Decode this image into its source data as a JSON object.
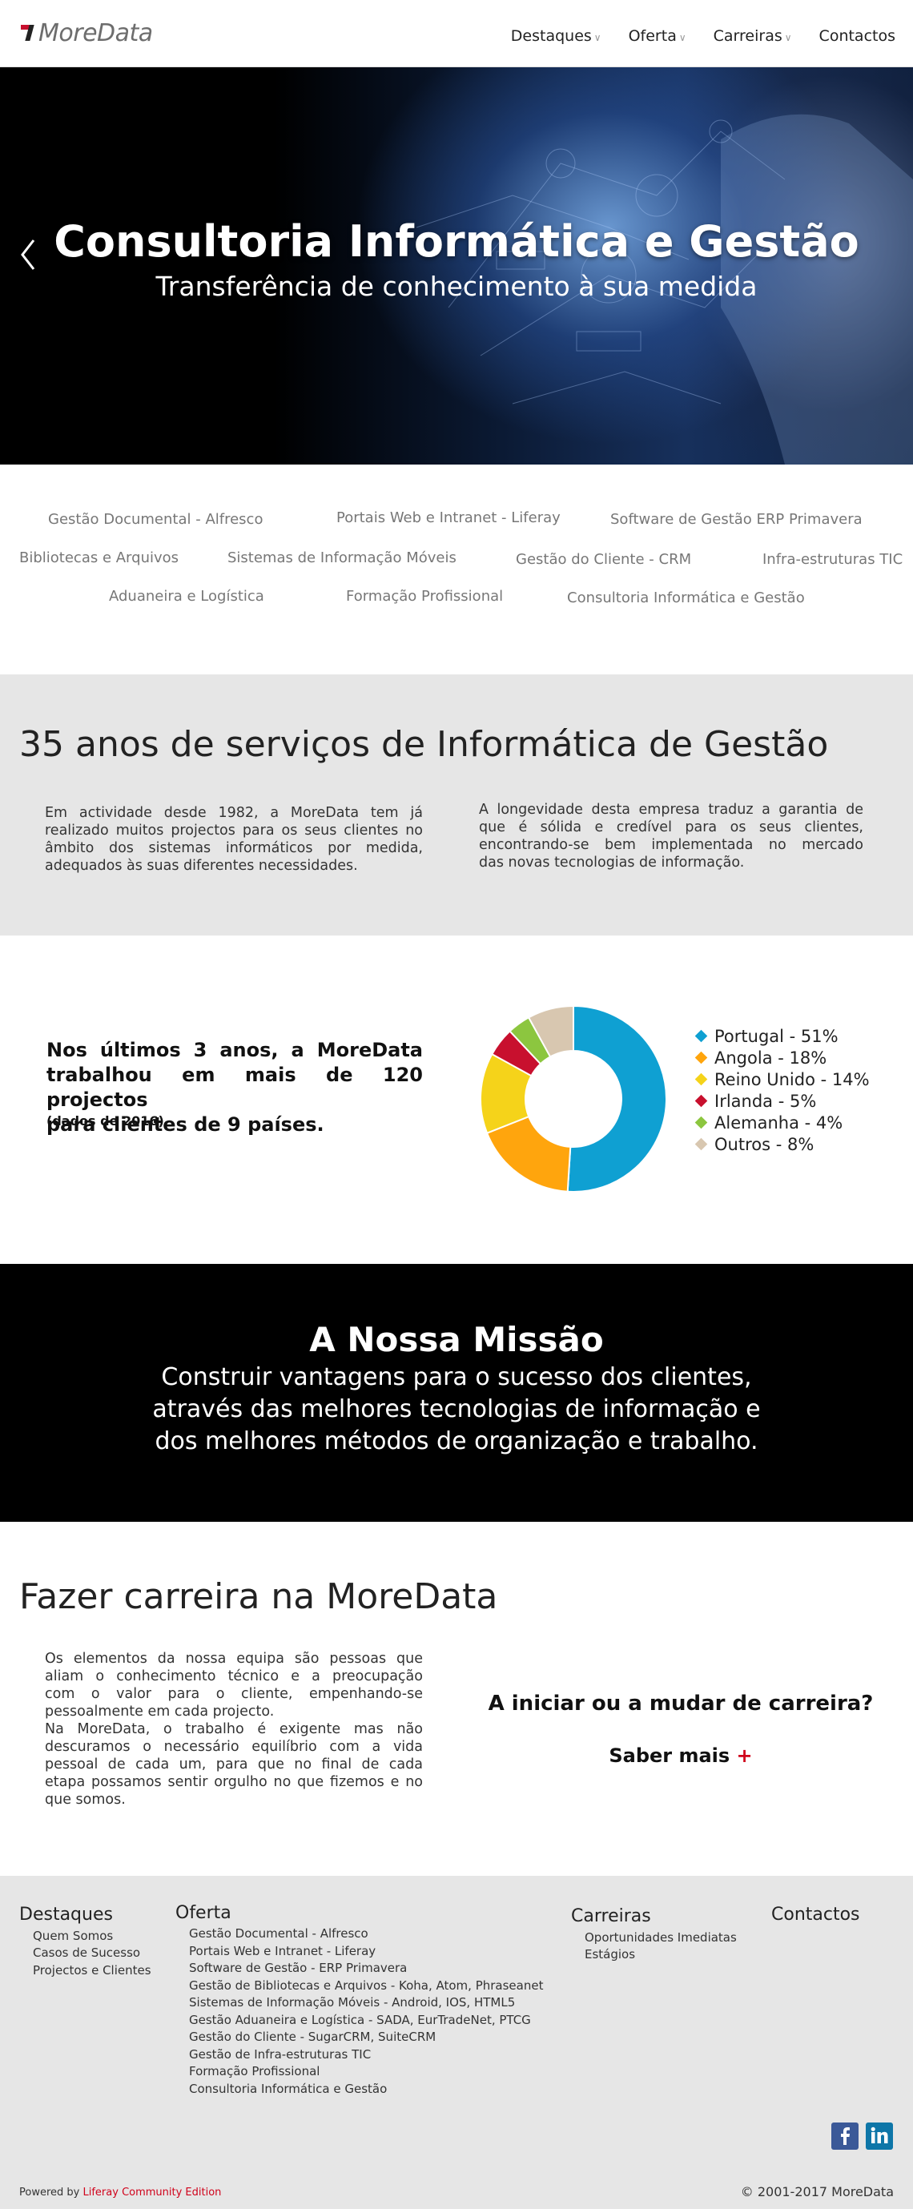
{
  "header": {
    "logo_text": "MoreData",
    "nav": [
      {
        "label": "Destaques",
        "has_dropdown": true
      },
      {
        "label": "Oferta",
        "has_dropdown": true
      },
      {
        "label": "Carreiras",
        "has_dropdown": true
      },
      {
        "label": "Contactos",
        "has_dropdown": false
      }
    ]
  },
  "hero": {
    "title": "Consultoria Informática e Gestão",
    "subtitle": "Transferência de conhecimento à sua medida",
    "prev_icon": "chevron-left-icon"
  },
  "services": [
    "Gestão Documental - Alfresco",
    "Portais Web e Intranet - Liferay",
    "Software de Gestão ERP Primavera",
    "Bibliotecas e Arquivos",
    "Sistemas de Informação Móveis",
    "Gestão do Cliente - CRM",
    "Infra-estruturas TIC",
    "Aduaneira e Logística",
    "Formação Profissional",
    "Consultoria Informática e Gestão"
  ],
  "about": {
    "title": "35 anos de serviços de Informática de Gestão",
    "left_lines": [
      "Em actividade desde 1982, a MoreData tem já",
      "realizado muitos projectos para os seus clientes no",
      "âmbito dos sistemas informáticos por medida,",
      "adequados às suas diferentes necessidades."
    ],
    "right_lines": [
      "A longevidade desta empresa traduz a garantia de",
      "que é sólida e credível para os seus clientes,",
      "encontrando-se bem implementada no mercado",
      "das novas tecnologias de informação."
    ]
  },
  "stats": {
    "lines": [
      "Nos últimos 3 anos, a MoreData",
      "trabalhou em mais de 120 projectos",
      "para clientes de 9 países."
    ],
    "note": "(dados de 2016)"
  },
  "chart_data": {
    "type": "pie",
    "donut": true,
    "categories": [
      "Portugal",
      "Angola",
      "Reino Unido",
      "Irlanda",
      "Alemanha",
      "Outros"
    ],
    "values": [
      51,
      18,
      14,
      5,
      4,
      8
    ],
    "colors": [
      "#0fa0d2",
      "#ffa50d",
      "#f5d31a",
      "#c8102e",
      "#8cc63f",
      "#d8c7b0"
    ],
    "legend_labels": [
      "Portugal - 51%",
      "Angola - 18%",
      "Reino Unido - 14%",
      "Irlanda - 5%",
      "Alemanha - 4%",
      "Outros - 8%"
    ],
    "legend_position": "right"
  },
  "mission": {
    "title": "A Nossa Missão",
    "lines": [
      "Construir vantagens para o sucesso dos clientes,",
      "através das melhores tecnologias de informação e",
      "dos melhores métodos de organização e trabalho."
    ]
  },
  "career": {
    "title": "Fazer carreira na MoreData",
    "lines": [
      "Os elementos da nossa equipa são pessoas que",
      "aliam o conhecimento técnico e a preocupação",
      "com o valor para o cliente, empenhando-se",
      "pessoalmente em cada projecto.",
      "Na MoreData, o trabalho é exigente mas não",
      "descuramos o necessário equilíbrio com a vida",
      "pessoal de cada um, para que no final de cada",
      "etapa possamos sentir orgulho no que fizemos e no",
      "que somos."
    ],
    "question": "A iniciar ou a mudar de carreira?",
    "more_label": "Saber mais",
    "more_plus": "+"
  },
  "footer": {
    "destaques": {
      "title": "Destaques",
      "links": [
        "Quem Somos",
        "Casos de Sucesso",
        "Projectos e Clientes"
      ]
    },
    "oferta": {
      "title": "Oferta",
      "links": [
        "Gestão Documental - Alfresco",
        "Portais Web e Intranet - Liferay",
        "Software de Gestão - ERP Primavera",
        "Gestão de Bibliotecas e Arquivos - Koha, Atom, Phraseanet",
        "Sistemas de Informação Móveis - Android, IOS, HTML5",
        "Gestão Aduaneira e Logística - SADA, EurTradeNet, PTCG",
        "Gestão do Cliente - SugarCRM, SuiteCRM",
        "Gestão de Infra-estruturas TIC",
        "Formação Profissional",
        "Consultoria Informática e Gestão"
      ]
    },
    "carreiras": {
      "title": "Carreiras",
      "links": [
        "Oportunidades Imediatas",
        "Estágios"
      ]
    },
    "contactos": {
      "title": "Contactos"
    },
    "social": [
      {
        "icon": "facebook-icon",
        "color": "#3b5998"
      },
      {
        "icon": "linkedin-icon",
        "color": "#0e76a8"
      }
    ],
    "powered_prefix": "Powered by",
    "powered_link": "Liferay Community Edition",
    "copyright": "© 2001-2017 MoreData"
  }
}
